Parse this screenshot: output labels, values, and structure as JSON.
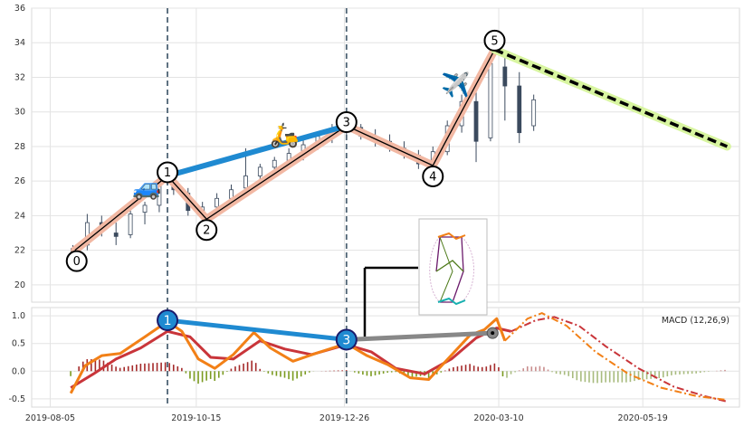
{
  "chart_data": {
    "type": "candlestick",
    "x_axis": {
      "tick_labels": [
        "2019-08-05",
        "2019-10-15",
        "2019-12-26",
        "2020-03-10",
        "2020-05-19"
      ],
      "tick_dates": [
        "2019-08-05",
        "2019-10-15",
        "2019-12-26",
        "2020-03-10",
        "2020-05-19"
      ],
      "range": [
        "2019-07-27",
        "2020-07-05"
      ]
    },
    "price_panel": {
      "y_ticks": [
        20,
        22,
        24,
        26,
        28,
        30,
        32,
        34,
        36
      ],
      "ylim": [
        19,
        36
      ],
      "grid": true,
      "candles": [
        {
          "date": "2019-08-16",
          "o": 21.6,
          "h": 22.3,
          "l": 21.4,
          "c": 22.1
        },
        {
          "date": "2019-08-23",
          "o": 22.3,
          "h": 24.1,
          "l": 22.0,
          "c": 23.6
        },
        {
          "date": "2019-08-30",
          "o": 23.6,
          "h": 24.0,
          "l": 22.8,
          "c": 23.2
        },
        {
          "date": "2019-09-06",
          "o": 23.0,
          "h": 23.6,
          "l": 22.3,
          "c": 22.8
        },
        {
          "date": "2019-09-13",
          "o": 22.9,
          "h": 24.4,
          "l": 22.7,
          "c": 24.1
        },
        {
          "date": "2019-09-20",
          "o": 24.2,
          "h": 24.8,
          "l": 23.5,
          "c": 24.6
        },
        {
          "date": "2019-09-27",
          "o": 24.6,
          "h": 26.2,
          "l": 24.2,
          "c": 25.9
        },
        {
          "date": "2019-10-04",
          "o": 25.9,
          "h": 26.3,
          "l": 25.2,
          "c": 25.5
        },
        {
          "date": "2019-10-11",
          "o": 25.3,
          "h": 25.6,
          "l": 24.0,
          "c": 24.3
        },
        {
          "date": "2019-10-18",
          "o": 24.2,
          "h": 24.8,
          "l": 23.8,
          "c": 24.5
        },
        {
          "date": "2019-10-25",
          "o": 24.5,
          "h": 25.3,
          "l": 24.3,
          "c": 25.0
        },
        {
          "date": "2019-11-01",
          "o": 25.0,
          "h": 25.8,
          "l": 24.7,
          "c": 25.5
        },
        {
          "date": "2019-11-08",
          "o": 25.6,
          "h": 27.9,
          "l": 25.3,
          "c": 26.3
        },
        {
          "date": "2019-11-15",
          "o": 26.3,
          "h": 27.0,
          "l": 25.8,
          "c": 26.8
        },
        {
          "date": "2019-11-22",
          "o": 26.8,
          "h": 27.4,
          "l": 26.4,
          "c": 27.2
        },
        {
          "date": "2019-11-29",
          "o": 27.2,
          "h": 27.9,
          "l": 26.8,
          "c": 27.6
        },
        {
          "date": "2019-12-06",
          "o": 27.6,
          "h": 28.4,
          "l": 27.2,
          "c": 28.1
        },
        {
          "date": "2019-12-13",
          "o": 28.1,
          "h": 28.8,
          "l": 27.8,
          "c": 28.6
        },
        {
          "date": "2019-12-20",
          "o": 28.6,
          "h": 29.3,
          "l": 28.2,
          "c": 29.0
        },
        {
          "date": "2019-12-27",
          "o": 29.0,
          "h": 29.6,
          "l": 28.6,
          "c": 29.2
        },
        {
          "date": "2020-01-03",
          "o": 29.1,
          "h": 29.3,
          "l": 28.4,
          "c": 28.6
        },
        {
          "date": "2020-01-10",
          "o": 28.6,
          "h": 29.0,
          "l": 28.0,
          "c": 28.3
        },
        {
          "date": "2020-01-17",
          "o": 28.3,
          "h": 28.7,
          "l": 27.7,
          "c": 27.9
        },
        {
          "date": "2020-01-24",
          "o": 27.9,
          "h": 28.3,
          "l": 27.3,
          "c": 27.5
        },
        {
          "date": "2020-01-31",
          "o": 27.5,
          "h": 27.8,
          "l": 26.7,
          "c": 27.0
        },
        {
          "date": "2020-02-07",
          "o": 27.0,
          "h": 28.0,
          "l": 26.8,
          "c": 27.7
        },
        {
          "date": "2020-02-14",
          "o": 27.7,
          "h": 29.5,
          "l": 27.5,
          "c": 29.2
        },
        {
          "date": "2020-02-21",
          "o": 29.2,
          "h": 31.0,
          "l": 28.8,
          "c": 30.6
        },
        {
          "date": "2020-02-28",
          "o": 30.6,
          "h": 31.5,
          "l": 27.1,
          "c": 28.3
        },
        {
          "date": "2020-03-06",
          "o": 28.5,
          "h": 33.5,
          "l": 28.3,
          "c": 32.8
        },
        {
          "date": "2020-03-13",
          "o": 32.6,
          "h": 33.2,
          "l": 29.5,
          "c": 31.5
        },
        {
          "date": "2020-03-20",
          "o": 31.5,
          "h": 32.3,
          "l": 28.2,
          "c": 28.8
        },
        {
          "date": "2020-03-27",
          "o": 29.2,
          "h": 31.0,
          "l": 28.9,
          "c": 30.7
        }
      ],
      "pivots": [
        {
          "label": "0",
          "date": "2019-08-17",
          "value": 22.0
        },
        {
          "label": "1",
          "date": "2019-10-01",
          "value": 26.3
        },
        {
          "label": "2",
          "date": "2019-10-20",
          "value": 23.8
        },
        {
          "label": "3",
          "date": "2019-12-27",
          "value": 29.2
        },
        {
          "label": "4",
          "date": "2020-02-07",
          "value": 26.9
        },
        {
          "label": "5",
          "date": "2020-03-08",
          "value": 33.6
        }
      ],
      "trendline": {
        "from": {
          "date": "2019-10-01",
          "value": 26.3
        },
        "to": {
          "date": "2019-12-27",
          "value": 29.2
        }
      },
      "projection": {
        "from": {
          "date": "2020-03-08",
          "value": 33.6
        },
        "to": {
          "date": "2020-06-29",
          "value": 28.0
        }
      },
      "vertical_markers": [
        "2019-10-01",
        "2019-12-27"
      ],
      "icons": [
        {
          "name": "car-icon",
          "glyph": "🚙",
          "date": "2019-09-21",
          "value": 25.6
        },
        {
          "name": "scooter-icon",
          "glyph": "🛵",
          "date": "2019-11-27",
          "value": 28.6
        },
        {
          "name": "airplane-icon",
          "glyph": "✈️",
          "date": "2020-02-18",
          "value": 31.5
        }
      ]
    },
    "macd_panel": {
      "label": "MACD (12,26,9)",
      "y_ticks": [
        -0.5,
        0.0,
        0.5,
        1.0
      ],
      "ylim": [
        -0.65,
        1.15
      ],
      "pivots": [
        {
          "label": "1",
          "date": "2019-10-01",
          "value": 0.92
        },
        {
          "label": "3",
          "date": "2019-12-27",
          "value": 0.57
        }
      ],
      "divergence": {
        "from": {
          "date": "2019-12-27",
          "value": 0.57
        },
        "to": {
          "date": "2020-03-07",
          "value": 0.69
        }
      },
      "macd_line": [
        {
          "date": "2019-08-15",
          "value": -0.4
        },
        {
          "date": "2019-08-22",
          "value": 0.1
        },
        {
          "date": "2019-08-30",
          "value": 0.28
        },
        {
          "date": "2019-09-08",
          "value": 0.32
        },
        {
          "date": "2019-09-20",
          "value": 0.62
        },
        {
          "date": "2019-10-01",
          "value": 0.9
        },
        {
          "date": "2019-10-08",
          "value": 0.72
        },
        {
          "date": "2019-10-16",
          "value": 0.22
        },
        {
          "date": "2019-10-24",
          "value": 0.05
        },
        {
          "date": "2019-11-02",
          "value": 0.3
        },
        {
          "date": "2019-11-12",
          "value": 0.7
        },
        {
          "date": "2019-11-20",
          "value": 0.42
        },
        {
          "date": "2019-12-01",
          "value": 0.18
        },
        {
          "date": "2019-12-12",
          "value": 0.32
        },
        {
          "date": "2019-12-27",
          "value": 0.5
        },
        {
          "date": "2020-01-06",
          "value": 0.28
        },
        {
          "date": "2020-01-16",
          "value": 0.12
        },
        {
          "date": "2020-01-27",
          "value": -0.12
        },
        {
          "date": "2020-02-05",
          "value": -0.15
        },
        {
          "date": "2020-02-15",
          "value": 0.25
        },
        {
          "date": "2020-02-25",
          "value": 0.65
        },
        {
          "date": "2020-03-03",
          "value": 0.75
        },
        {
          "date": "2020-03-09",
          "value": 0.95
        },
        {
          "date": "2020-03-13",
          "value": 0.55
        }
      ],
      "signal_line": [
        {
          "date": "2019-08-15",
          "value": -0.3
        },
        {
          "date": "2019-08-26",
          "value": -0.05
        },
        {
          "date": "2019-09-06",
          "value": 0.22
        },
        {
          "date": "2019-09-18",
          "value": 0.42
        },
        {
          "date": "2019-10-01",
          "value": 0.72
        },
        {
          "date": "2019-10-12",
          "value": 0.62
        },
        {
          "date": "2019-10-22",
          "value": 0.25
        },
        {
          "date": "2019-11-02",
          "value": 0.22
        },
        {
          "date": "2019-11-15",
          "value": 0.55
        },
        {
          "date": "2019-11-27",
          "value": 0.4
        },
        {
          "date": "2019-12-10",
          "value": 0.3
        },
        {
          "date": "2019-12-27",
          "value": 0.48
        },
        {
          "date": "2020-01-08",
          "value": 0.35
        },
        {
          "date": "2020-01-20",
          "value": 0.05
        },
        {
          "date": "2020-02-03",
          "value": -0.05
        },
        {
          "date": "2020-02-16",
          "value": 0.22
        },
        {
          "date": "2020-02-28",
          "value": 0.6
        },
        {
          "date": "2020-03-09",
          "value": 0.78
        },
        {
          "date": "2020-03-16",
          "value": 0.72
        }
      ],
      "projected_macd": [
        {
          "date": "2020-03-13",
          "value": 0.55
        },
        {
          "date": "2020-03-24",
          "value": 0.95
        },
        {
          "date": "2020-03-31",
          "value": 1.05
        },
        {
          "date": "2020-04-12",
          "value": 0.82
        },
        {
          "date": "2020-04-26",
          "value": 0.35
        },
        {
          "date": "2020-05-12",
          "value": -0.05
        },
        {
          "date": "2020-05-28",
          "value": -0.3
        },
        {
          "date": "2020-06-14",
          "value": -0.45
        },
        {
          "date": "2020-06-29",
          "value": -0.52
        }
      ],
      "projected_signal": [
        {
          "date": "2020-03-16",
          "value": 0.72
        },
        {
          "date": "2020-03-28",
          "value": 0.92
        },
        {
          "date": "2020-04-06",
          "value": 0.98
        },
        {
          "date": "2020-04-18",
          "value": 0.82
        },
        {
          "date": "2020-05-01",
          "value": 0.45
        },
        {
          "date": "2020-05-17",
          "value": 0.05
        },
        {
          "date": "2020-06-03",
          "value": -0.28
        },
        {
          "date": "2020-06-18",
          "value": -0.45
        },
        {
          "date": "2020-06-29",
          "value": -0.55
        }
      ],
      "colors": {
        "macd": "#f28017",
        "signal": "#c9353a",
        "hist_pos": "#a52a2a",
        "hist_neg": "#7a9a1f",
        "hist_proj_pos": "#c98d8d",
        "hist_proj_neg": "#a8bb7e",
        "pivot_fill": "#1f8ad1",
        "trend": "#1f8ad1",
        "divergence": "#888888"
      }
    },
    "colors": {
      "zigzag": "#000000",
      "zigzag_halo": "#f2b8a3",
      "trendline": "#1f8ad1",
      "projection": "#000000",
      "projection_halo": "#d8f5a0",
      "vline": "#4f6475",
      "candle": "#3b4a5e"
    }
  }
}
